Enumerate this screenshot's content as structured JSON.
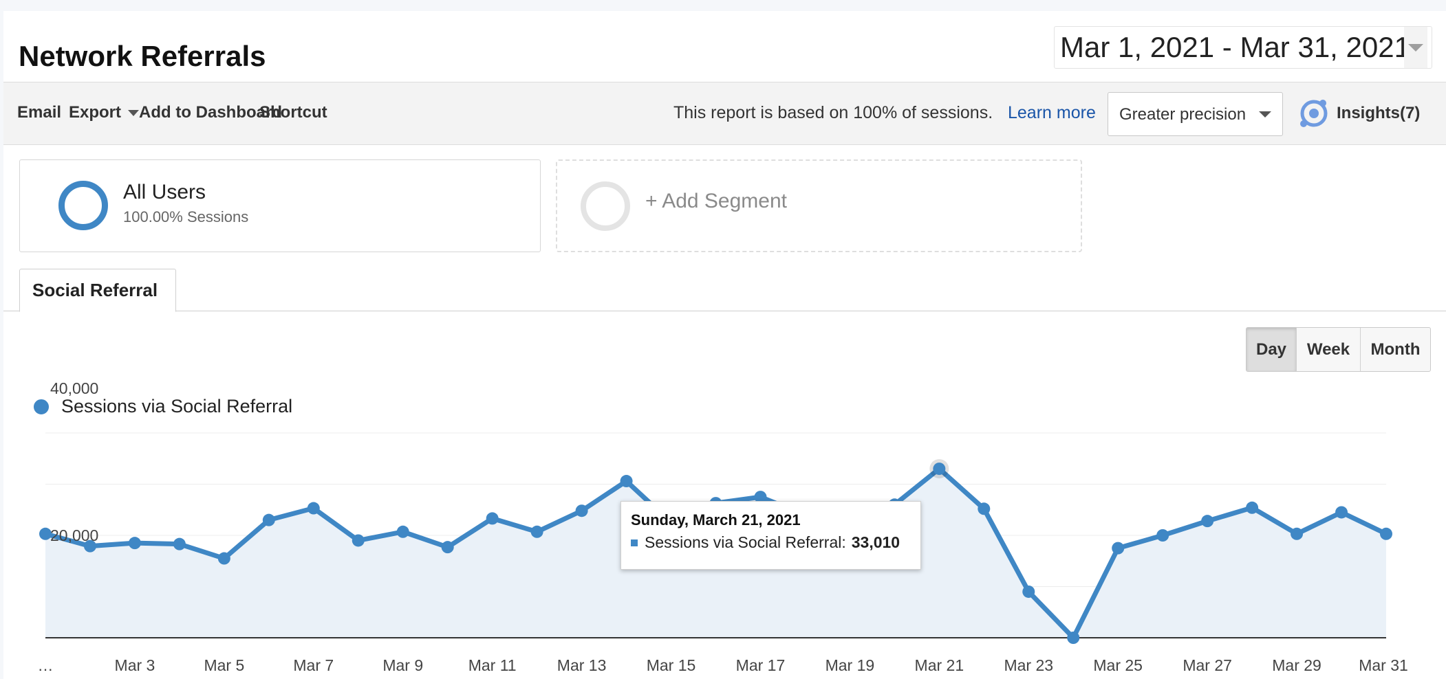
{
  "page": {
    "title": "Network Referrals",
    "date_range": "Mar 1, 2021 - Mar 31, 2021"
  },
  "toolbar": {
    "email": "Email",
    "export": "Export",
    "add_to_dashboard": "Add to Dashboard",
    "shortcut": "Shortcut",
    "report_note": "This report is based on 100% of sessions.",
    "learn_more": "Learn more",
    "precision": "Greater precision",
    "insights": "Insights(7)"
  },
  "segments": {
    "active_name": "All Users",
    "active_sub": "100.00% Sessions",
    "add_label": "+ Add Segment"
  },
  "tabs": {
    "active": "Social Referral"
  },
  "granularity": [
    "Day",
    "Week",
    "Month"
  ],
  "granularity_selected": "Day",
  "legend": {
    "label": "Sessions via Social Referral",
    "color": "#3f87c5"
  },
  "tooltip": {
    "title": "Sunday, March 21, 2021",
    "series": "Sessions via Social Referral:",
    "value": "33,010"
  },
  "colors": {
    "series": "#3f87c5",
    "area": "#eaf1f8",
    "link": "#1a55a8"
  },
  "chart_data": {
    "type": "area",
    "x": [
      "Mar 1",
      "Mar 2",
      "Mar 3",
      "Mar 4",
      "Mar 5",
      "Mar 6",
      "Mar 7",
      "Mar 8",
      "Mar 9",
      "Mar 10",
      "Mar 11",
      "Mar 12",
      "Mar 13",
      "Mar 14",
      "Mar 15",
      "Mar 16",
      "Mar 17",
      "Mar 18",
      "Mar 19",
      "Mar 20",
      "Mar 21",
      "Mar 22",
      "Mar 23",
      "Mar 24",
      "Mar 25",
      "Mar 26",
      "Mar 27",
      "Mar 28",
      "Mar 29",
      "Mar 30",
      "Mar 31"
    ],
    "series": [
      {
        "name": "Sessions via Social Referral",
        "values": [
          20300,
          17900,
          18500,
          18300,
          15500,
          23000,
          25300,
          19000,
          20700,
          17700,
          23300,
          20700,
          24800,
          30600,
          22500,
          26300,
          27500,
          24000,
          21500,
          26000,
          33010,
          25200,
          9000,
          0,
          17500,
          20000,
          22800,
          25400,
          20300,
          24500,
          20300
        ]
      }
    ],
    "y_ticks": [
      "40,000",
      "20,000"
    ],
    "x_tick_labels": [
      "…",
      "Mar 3",
      "Mar 5",
      "Mar 7",
      "Mar 9",
      "Mar 11",
      "Mar 13",
      "Mar 15",
      "Mar 17",
      "Mar 19",
      "Mar 21",
      "Mar 23",
      "Mar 25",
      "Mar 27",
      "Mar 29",
      "Mar 31"
    ],
    "ylim": [
      0,
      40000
    ],
    "grid": true,
    "highlighted_x": "Mar 21"
  }
}
